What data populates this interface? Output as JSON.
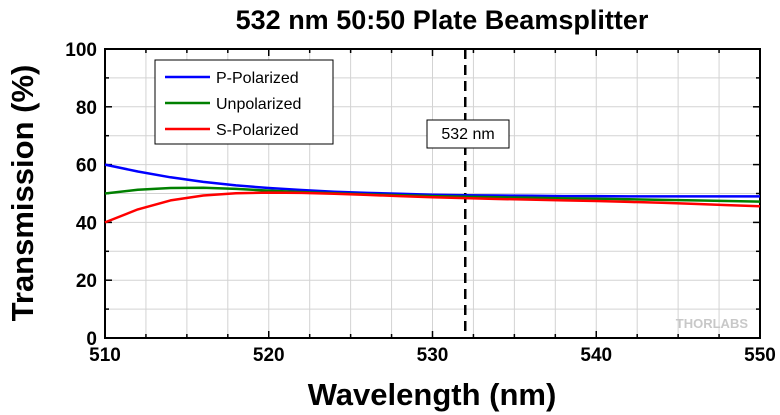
{
  "chart_data": {
    "type": "line",
    "title": "532 nm 50:50 Plate Beamsplitter",
    "xlabel": "Wavelength (nm)",
    "ylabel": "Transmission (%)",
    "xlim": [
      510,
      550
    ],
    "ylim": [
      0,
      100
    ],
    "x_ticks": [
      510,
      520,
      530,
      540,
      550
    ],
    "y_ticks": [
      0,
      20,
      40,
      60,
      80,
      100
    ],
    "grid": true,
    "legend_position": "top-left",
    "series": [
      {
        "name": "P-Polarized",
        "color": "#0000ff",
        "x": [
          510,
          512,
          514,
          516,
          518,
          520,
          522,
          524,
          526,
          528,
          530,
          532,
          534,
          536,
          538,
          540,
          542,
          544,
          546,
          548,
          550
        ],
        "y": [
          60.0,
          57.6,
          55.6,
          54.0,
          52.8,
          51.9,
          51.2,
          50.6,
          50.2,
          49.9,
          49.6,
          49.4,
          49.3,
          49.2,
          49.1,
          49.1,
          49.0,
          49.0,
          49.0,
          49.0,
          49.0
        ]
      },
      {
        "name": "Unpolarized",
        "color": "#008000",
        "x": [
          510,
          512,
          514,
          516,
          518,
          520,
          522,
          524,
          526,
          528,
          530,
          532,
          534,
          536,
          538,
          540,
          542,
          544,
          546,
          548,
          550
        ],
        "y": [
          50.0,
          51.3,
          51.9,
          52.0,
          51.6,
          51.0,
          50.5,
          50.1,
          49.7,
          49.4,
          49.1,
          48.9,
          48.7,
          48.5,
          48.3,
          48.2,
          48.0,
          47.8,
          47.6,
          47.4,
          47.2
        ]
      },
      {
        "name": "S-Polarized",
        "color": "#ff0000",
        "x": [
          510,
          512,
          514,
          516,
          518,
          520,
          522,
          524,
          526,
          528,
          530,
          532,
          534,
          536,
          538,
          540,
          542,
          544,
          546,
          548,
          550
        ],
        "y": [
          40.0,
          44.5,
          47.6,
          49.3,
          50.1,
          50.3,
          50.2,
          49.9,
          49.5,
          49.1,
          48.7,
          48.4,
          48.1,
          47.9,
          47.6,
          47.4,
          47.1,
          46.8,
          46.4,
          46.0,
          45.6
        ]
      }
    ],
    "annotations": [
      {
        "text": "532 nm",
        "x": 532,
        "style": "dashed vertical line"
      }
    ],
    "watermark": "THORLABS"
  }
}
